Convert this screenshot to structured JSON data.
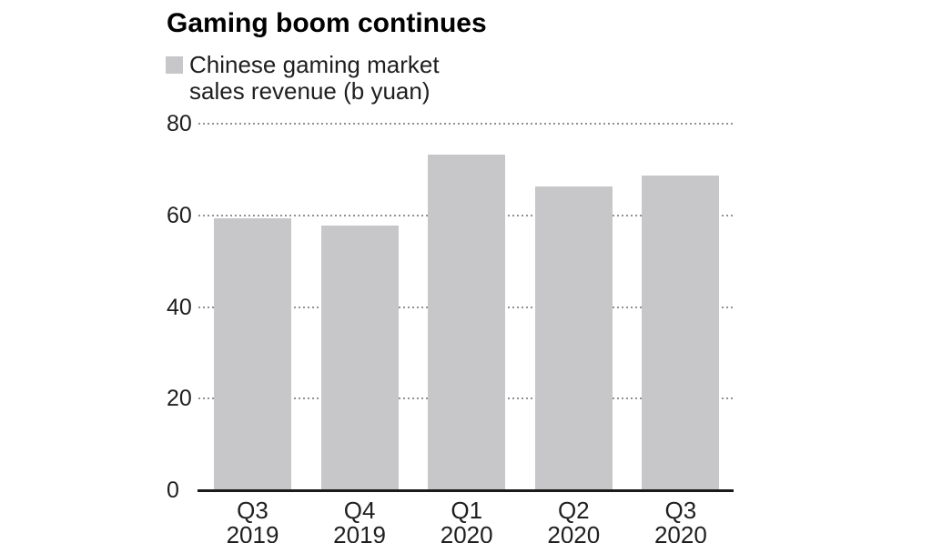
{
  "title": "Gaming boom continues",
  "legend": {
    "line1": "Chinese gaming market",
    "line2": "sales revenue (b yuan)"
  },
  "colors": {
    "bar": "#c7c7c9",
    "grid_dot": "#919191",
    "axis": "#1a1a1a",
    "tick_text": "#1f1f1f",
    "title_text": "#000000",
    "background": "#ffffff"
  },
  "chart_data": {
    "type": "bar",
    "title": "Gaming boom continues",
    "categories": [
      "Q3 2019",
      "Q4 2019",
      "Q1 2020",
      "Q2 2020",
      "Q3 2020"
    ],
    "category_lines": [
      [
        "Q3",
        "2019"
      ],
      [
        "Q4",
        "2019"
      ],
      [
        "Q1",
        "2020"
      ],
      [
        "Q2",
        "2020"
      ],
      [
        "Q3",
        "2020"
      ]
    ],
    "series": [
      {
        "name": "Chinese gaming market sales revenue (b yuan)",
        "values": [
          59.3,
          57.7,
          73.2,
          66.3,
          68.6
        ]
      }
    ],
    "xlabel": "",
    "ylabel": "",
    "yticks": [
      0,
      20,
      40,
      60,
      80
    ],
    "ylim": [
      0,
      80
    ],
    "grid": "horizontal-dotted",
    "legend_position": "top-left",
    "bar_color": "#c7c7c9"
  }
}
